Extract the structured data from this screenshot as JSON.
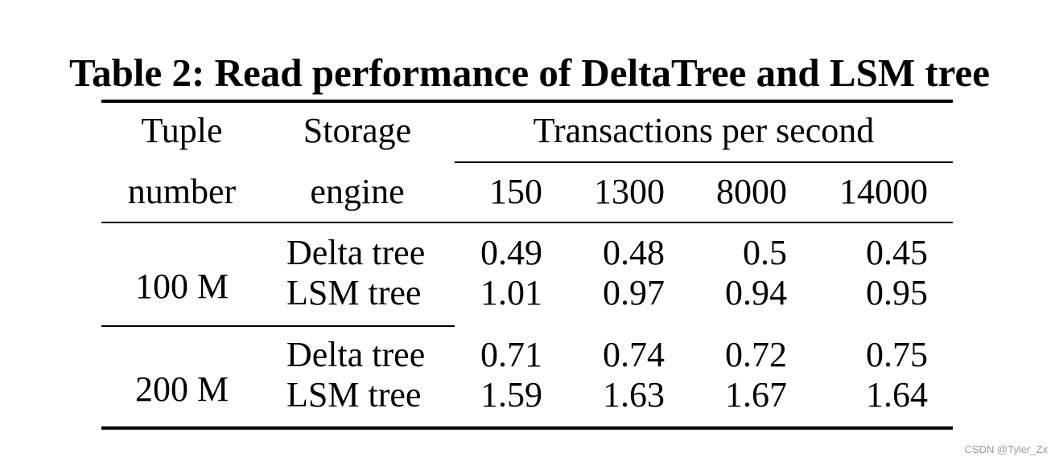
{
  "caption": "Table 2: Read performance of DeltaTree and LSM tree",
  "header": {
    "tuple_line1": "Tuple",
    "tuple_line2": "number",
    "engine_line1": "Storage",
    "engine_line2": "engine",
    "tps_label": "Transactions per second",
    "tps_values": [
      "150",
      "1300",
      "8000",
      "14000"
    ]
  },
  "groups": [
    {
      "tuple": "100 M",
      "rows": [
        {
          "engine": "Delta tree",
          "values": [
            "0.49",
            "0.48",
            "0.5",
            "0.45"
          ]
        },
        {
          "engine": "LSM tree",
          "values": [
            "1.01",
            "0.97",
            "0.94",
            "0.95"
          ]
        }
      ]
    },
    {
      "tuple": "200 M",
      "rows": [
        {
          "engine": "Delta tree",
          "values": [
            "0.71",
            "0.74",
            "0.72",
            "0.75"
          ]
        },
        {
          "engine": "LSM tree",
          "values": [
            "1.59",
            "1.63",
            "1.67",
            "1.64"
          ]
        }
      ]
    }
  ],
  "watermark": "CSDN @Tyler_Zx",
  "chart_data": {
    "type": "table",
    "title": "Table 2: Read performance of DeltaTree and LSM tree",
    "columns": [
      "Tuple number",
      "Storage engine",
      "150",
      "1300",
      "8000",
      "14000"
    ],
    "column_group": "Transactions per second",
    "rows": [
      [
        "100 M",
        "Delta tree",
        0.49,
        0.48,
        0.5,
        0.45
      ],
      [
        "100 M",
        "LSM tree",
        1.01,
        0.97,
        0.94,
        0.95
      ],
      [
        "200 M",
        "Delta tree",
        0.71,
        0.74,
        0.72,
        0.75
      ],
      [
        "200 M",
        "LSM tree",
        1.59,
        1.63,
        1.67,
        1.64
      ]
    ]
  }
}
